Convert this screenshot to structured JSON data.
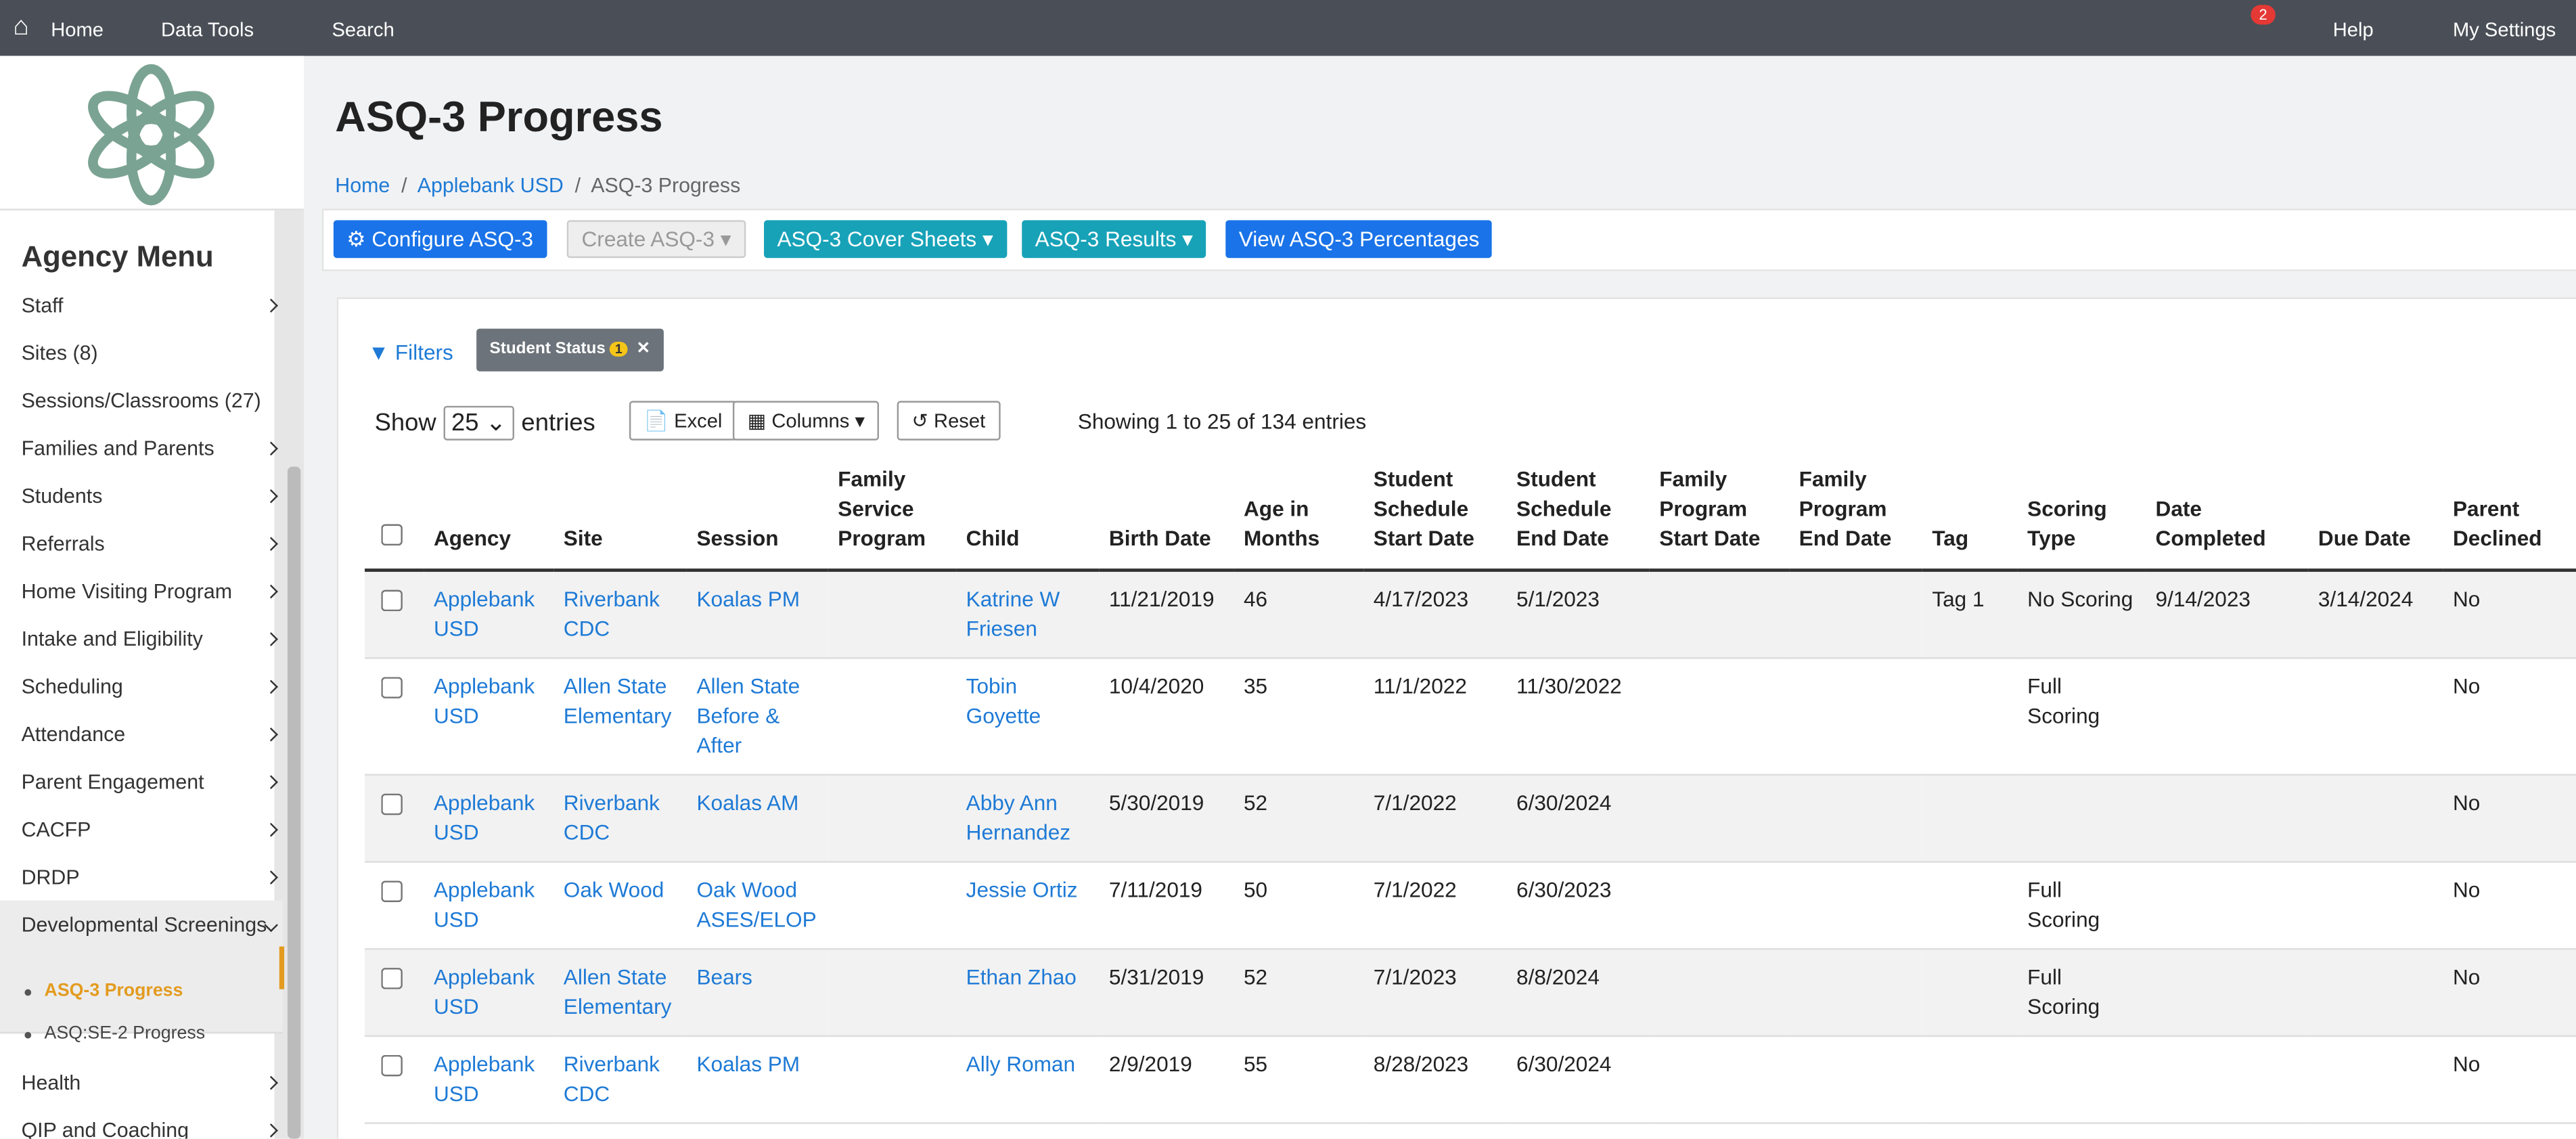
{
  "nav": {
    "home": "Home",
    "data_tools": "Data Tools",
    "search": "Search",
    "mail_badge": "2",
    "help": "Help",
    "settings": "My Settings"
  },
  "sidebar": {
    "title": "Agency Menu",
    "items": [
      "Staff",
      "Sites (8)",
      "Sessions/Classrooms (27)",
      "Families and Parents",
      "Students",
      "Referrals",
      "Home Visiting Program",
      "Intake and Eligibility",
      "Scheduling",
      "Attendance",
      "Parent Engagement",
      "CACFP",
      "DRDP",
      "Developmental Screenings"
    ],
    "sub_items": [
      "ASQ-3 Progress",
      "ASQ:SE-2 Progress"
    ],
    "items_after": [
      "Health",
      "QIP and Coaching"
    ]
  },
  "header": {
    "title": "ASQ-3 Progress",
    "breadcrumb": [
      "Home",
      "Applebank USD",
      "ASQ-3 Progress"
    ]
  },
  "toolbar": {
    "buttons": [
      "Configure ASQ-3",
      "Create ASQ-3",
      "ASQ-3 Cover Sheets",
      "ASQ-3 Results",
      "View ASQ-3 Percentages"
    ]
  },
  "filters": {
    "label": "Filters",
    "chip": "Student Status",
    "chip_count": "1"
  },
  "length": {
    "show": "Show",
    "value": "25",
    "entries": "entries"
  },
  "actions": [
    "Excel",
    "Columns",
    "Reset"
  ],
  "info": "Showing 1 to 25 of 134 entries",
  "table": {
    "columns": [
      "Agency",
      "Site",
      "Session",
      "Family Service Program",
      "Child",
      "Birth Date",
      "Age in Months",
      "Student Schedule Start Date",
      "Student Schedule End Date",
      "Family Program Start Date",
      "Family Program End Date",
      "Tag",
      "Scoring Type",
      "Date Completed",
      "Due Date",
      "Parent Declined"
    ],
    "rows": [
      [
        "Applebank USD",
        "Riverbank CDC",
        "Koalas PM",
        null,
        "Katrine W Friesen",
        "11/21/2019",
        46,
        "4/17/2023",
        "5/1/2023",
        null,
        null,
        "Tag 1",
        "No Scoring",
        "9/14/2023",
        "3/14/2024",
        "No"
      ],
      [
        "Applebank USD",
        "Allen State Elementary",
        "Allen State Before & After",
        null,
        "Tobin Goyette",
        "10/4/2020",
        35,
        "11/1/2022",
        "11/30/2022",
        null,
        null,
        null,
        "Full Scoring",
        null,
        null,
        "No"
      ],
      [
        "Applebank USD",
        "Riverbank CDC",
        "Koalas AM",
        null,
        "Abby Ann Hernandez",
        "5/30/2019",
        52,
        "7/1/2022",
        "6/30/2024",
        null,
        null,
        null,
        null,
        null,
        null,
        "No"
      ],
      [
        "Applebank USD",
        "Oak Wood",
        "Oak Wood ASES/ELOP",
        null,
        "Jessie Ortiz",
        "7/11/2019",
        50,
        "7/1/2022",
        "6/30/2023",
        null,
        null,
        null,
        "Full Scoring",
        null,
        null,
        "No"
      ],
      [
        "Applebank USD",
        "Allen State Elementary",
        "Bears",
        null,
        "Ethan Zhao",
        "5/31/2019",
        52,
        "7/1/2023",
        "8/8/2024",
        null,
        null,
        null,
        "Full Scoring",
        null,
        null,
        "No"
      ],
      [
        "Applebank USD",
        "Riverbank CDC",
        "Koalas PM",
        null,
        "Ally Roman",
        "2/9/2019",
        55,
        "8/28/2023",
        "6/30/2024",
        null,
        null,
        null,
        null,
        null,
        null,
        "No"
      ]
    ]
  }
}
